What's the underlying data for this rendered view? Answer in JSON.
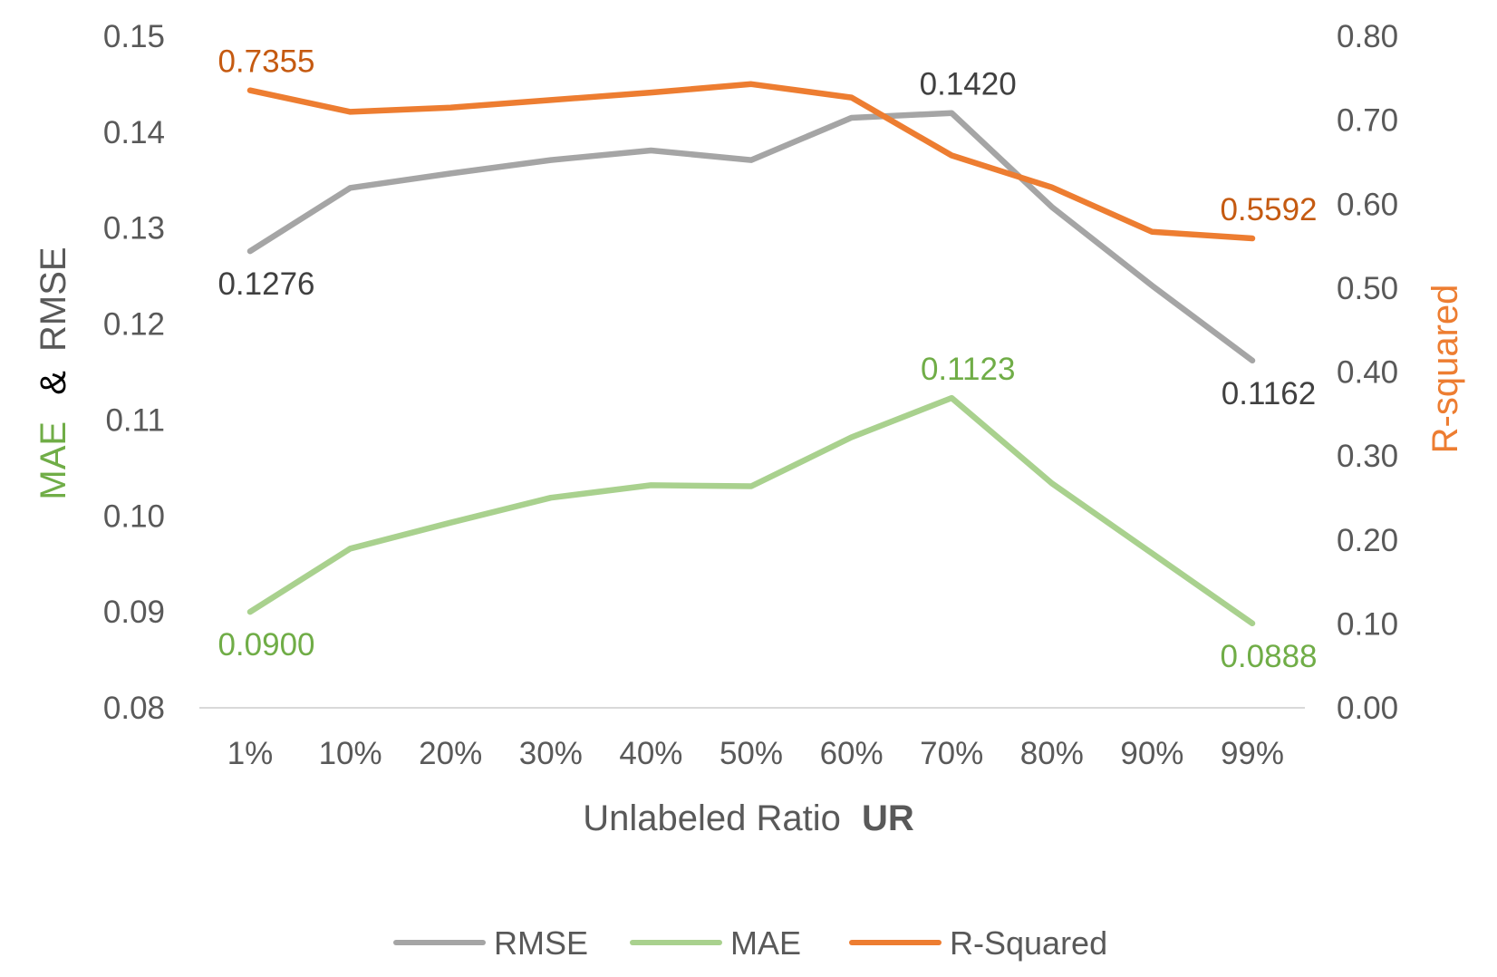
{
  "chart_data": {
    "type": "line",
    "categories": [
      "1%",
      "10%",
      "20%",
      "30%",
      "40%",
      "50%",
      "60%",
      "70%",
      "80%",
      "90%",
      "99%"
    ],
    "series": [
      {
        "name": "RMSE",
        "axis": "left",
        "color": "#A5A5A5",
        "values": [
          0.1276,
          0.1342,
          0.1357,
          0.1371,
          0.1381,
          0.1371,
          0.1415,
          0.142,
          0.1322,
          0.124,
          0.1162
        ]
      },
      {
        "name": "MAE",
        "axis": "left",
        "color": "#A9D18E",
        "values": [
          0.09,
          0.0966,
          0.0993,
          0.1019,
          0.1032,
          0.1031,
          0.1082,
          0.1123,
          0.1034,
          0.0961,
          0.0888
        ]
      },
      {
        "name": "R-Squared",
        "axis": "right",
        "color": "#ED7D31",
        "values": [
          0.7355,
          0.71,
          0.715,
          0.724,
          0.733,
          0.743,
          0.727,
          0.658,
          0.62,
          0.567,
          0.5592
        ]
      }
    ],
    "data_labels": [
      {
        "series": 0,
        "index": 0,
        "text": "0.1276",
        "color": "#404040",
        "pos": "below"
      },
      {
        "series": 0,
        "index": 7,
        "text": "0.1420",
        "color": "#404040",
        "pos": "above"
      },
      {
        "series": 0,
        "index": 10,
        "text": "0.1162",
        "color": "#404040",
        "pos": "below"
      },
      {
        "series": 1,
        "index": 0,
        "text": "0.0900",
        "color": "#70AD47",
        "pos": "below"
      },
      {
        "series": 1,
        "index": 7,
        "text": "0.1123",
        "color": "#70AD47",
        "pos": "above"
      },
      {
        "series": 1,
        "index": 10,
        "text": "0.0888",
        "color": "#70AD47",
        "pos": "below"
      },
      {
        "series": 2,
        "index": 0,
        "text": "0.7355",
        "color": "#C55A11",
        "pos": "above"
      },
      {
        "series": 2,
        "index": 10,
        "text": "0.5592",
        "color": "#C55A11",
        "pos": "above"
      }
    ],
    "y_left": {
      "min": 0.08,
      "max": 0.15,
      "step": 0.01,
      "ticks": [
        "0.08",
        "0.09",
        "0.10",
        "0.11",
        "0.12",
        "0.13",
        "0.14",
        "0.15"
      ],
      "label_parts": [
        {
          "text": "MAE",
          "color": "#70AD47"
        },
        {
          "text": "&",
          "color": "#000000"
        },
        {
          "text": "RMSE",
          "color": "#595959"
        }
      ]
    },
    "y_right": {
      "min": 0.0,
      "max": 0.8,
      "step": 0.1,
      "ticks": [
        "0.00",
        "0.10",
        "0.20",
        "0.30",
        "0.40",
        "0.50",
        "0.60",
        "0.70",
        "0.80"
      ],
      "label": "R-squared",
      "label_color": "#ED7D31"
    },
    "xlabel": {
      "text": "Unlabeled Ratio",
      "bold_text": "UR"
    },
    "legend_position": "bottom-center",
    "grid": false
  }
}
